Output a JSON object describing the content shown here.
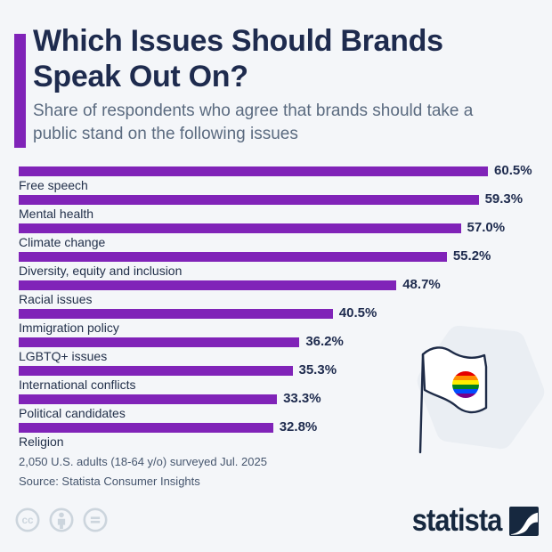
{
  "header": {
    "title": "Which Issues Should Brands\nSpeak Out On?",
    "subtitle": "Share of respondents who agree that brands should take a\npublic stand on the following issues"
  },
  "chart_data": {
    "type": "bar",
    "orientation": "horizontal",
    "title": "Which Issues Should Brands Speak Out On?",
    "subtitle": "Share of respondents who agree that brands should take a public stand on the following issues",
    "unit": "%",
    "xmax": 67.5,
    "grid": false,
    "legend": false,
    "items": [
      {
        "category": "Free speech",
        "value": 60.5,
        "value_label": "60.5%"
      },
      {
        "category": "Mental health",
        "value": 59.3,
        "value_label": "59.3%"
      },
      {
        "category": "Climate change",
        "value": 57.0,
        "value_label": "57.0%"
      },
      {
        "category": "Diversity, equity and inclusion",
        "value": 55.2,
        "value_label": "55.2%"
      },
      {
        "category": "Racial issues",
        "value": 48.7,
        "value_label": "48.7%"
      },
      {
        "category": "Immigration policy",
        "value": 40.5,
        "value_label": "40.5%"
      },
      {
        "category": "LGBTQ+ issues",
        "value": 36.2,
        "value_label": "36.2%"
      },
      {
        "category": "International conflicts",
        "value": 35.3,
        "value_label": "35.3%"
      },
      {
        "category": "Political candidates",
        "value": 33.3,
        "value_label": "33.3%"
      },
      {
        "category": "Religion",
        "value": 32.8,
        "value_label": "32.8%"
      }
    ]
  },
  "illustration": {
    "name": "pride-flag-illustration",
    "rainbow_colors": [
      "#E50000",
      "#FF8D00",
      "#FFEE00",
      "#028121",
      "#004CFF",
      "#770088"
    ]
  },
  "footer": {
    "note": "2,050 U.S. adults (18-64 y/o) surveyed Jul. 2025",
    "source": "Source: Statista Consumer Insights",
    "license_icons": [
      "cc-icon",
      "attribution-icon",
      "equal-icon"
    ],
    "brand": "statista"
  },
  "colors": {
    "bar": "#8023b8",
    "accent": "#8023b8",
    "title_text": "#1e2b4e",
    "subtitle_text": "#5b6b80",
    "footer_text": "#46566e",
    "background": "#f4f6f9",
    "brand_navy": "#16283f",
    "license_gray": "#ccd5dd",
    "blob": "#eaeef3"
  }
}
